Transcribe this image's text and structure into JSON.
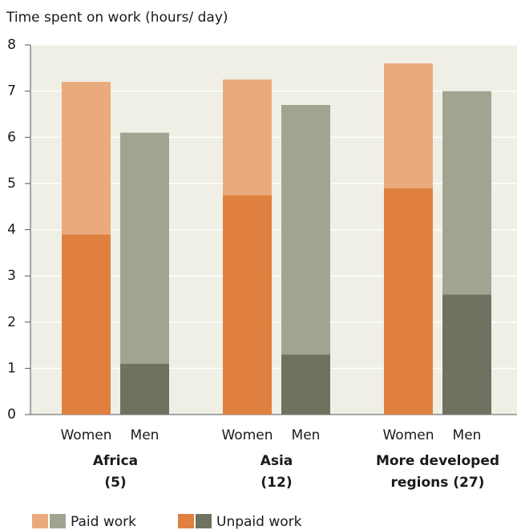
{
  "chart_data": {
    "type": "stacked_bar",
    "title": "Time spent on work (hours/ day)",
    "categories": [
      "Women",
      "Men",
      "Women",
      "Men",
      "Women",
      "Men"
    ],
    "groups": [
      [
        "Africa",
        "(5)"
      ],
      [
        "Asia",
        "(12)"
      ],
      [
        "More developed",
        "regions (27)"
      ]
    ],
    "series": [
      {
        "name": "Paid work",
        "colors": [
          "#ebaa7d",
          "#a2a391",
          "#ebaa7d",
          "#a2a391",
          "#ebaa7d",
          "#a2a391"
        ],
        "values": [
          3.3,
          5.0,
          2.5,
          5.4,
          2.7,
          4.4
        ]
      },
      {
        "name": "Unpaid work",
        "colors": [
          "#e0803f",
          "#707160",
          "#e0803f",
          "#707160",
          "#e0803f",
          "#707160"
        ],
        "values": [
          3.9,
          1.1,
          4.75,
          1.3,
          4.9,
          2.6
        ]
      }
    ],
    "ylim": [
      0,
      8
    ],
    "yticks": [
      0,
      1,
      2,
      3,
      4,
      5,
      6,
      7,
      8
    ],
    "grid": true
  }
}
